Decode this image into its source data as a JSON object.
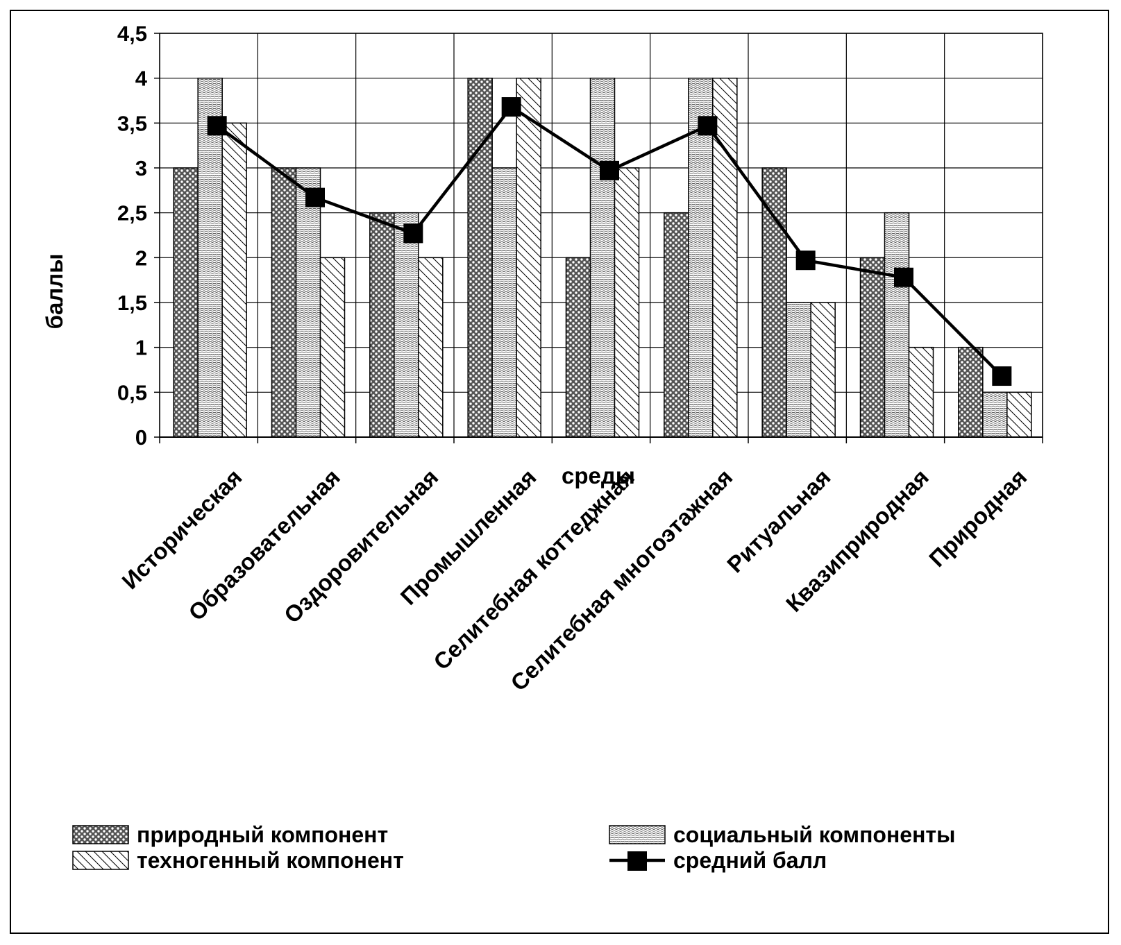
{
  "chart_data": {
    "type": "bar",
    "xlabel": "среды",
    "ylabel": "баллы",
    "ylim": [
      0,
      4.5
    ],
    "ytick_step": 0.5,
    "y_tick_labels": [
      "0",
      "0,5",
      "1",
      "1,5",
      "2",
      "2,5",
      "3",
      "3,5",
      "4",
      "4,5"
    ],
    "grid": true,
    "legend_position": "bottom",
    "categories": [
      "Историческая",
      "Образовательная",
      "Оздоровительная",
      "Промышленная",
      "Селитебная коттеджная",
      "Селитебная многоэтажная",
      "Ритуальная",
      "Квазиприродная",
      "Природная"
    ],
    "series": [
      {
        "name": "природный компонент",
        "kind": "bar",
        "pattern": "dots-dark",
        "values": [
          3,
          3,
          2.5,
          4,
          2,
          2.5,
          3,
          2,
          1
        ]
      },
      {
        "name": "социальный компоненты",
        "kind": "bar",
        "pattern": "dots-light",
        "values": [
          4,
          3,
          2.5,
          3,
          4,
          4,
          1.5,
          2.5,
          0.5
        ]
      },
      {
        "name": "техногенный компонент",
        "kind": "bar",
        "pattern": "diagonal-hatch",
        "values": [
          3.5,
          2,
          2,
          4,
          3,
          4,
          1.5,
          1,
          0.5
        ]
      },
      {
        "name": "средний балл",
        "kind": "line",
        "marker": "square",
        "values": [
          3.47,
          2.67,
          2.27,
          3.68,
          2.97,
          3.47,
          1.97,
          1.78,
          0.68
        ]
      }
    ]
  }
}
